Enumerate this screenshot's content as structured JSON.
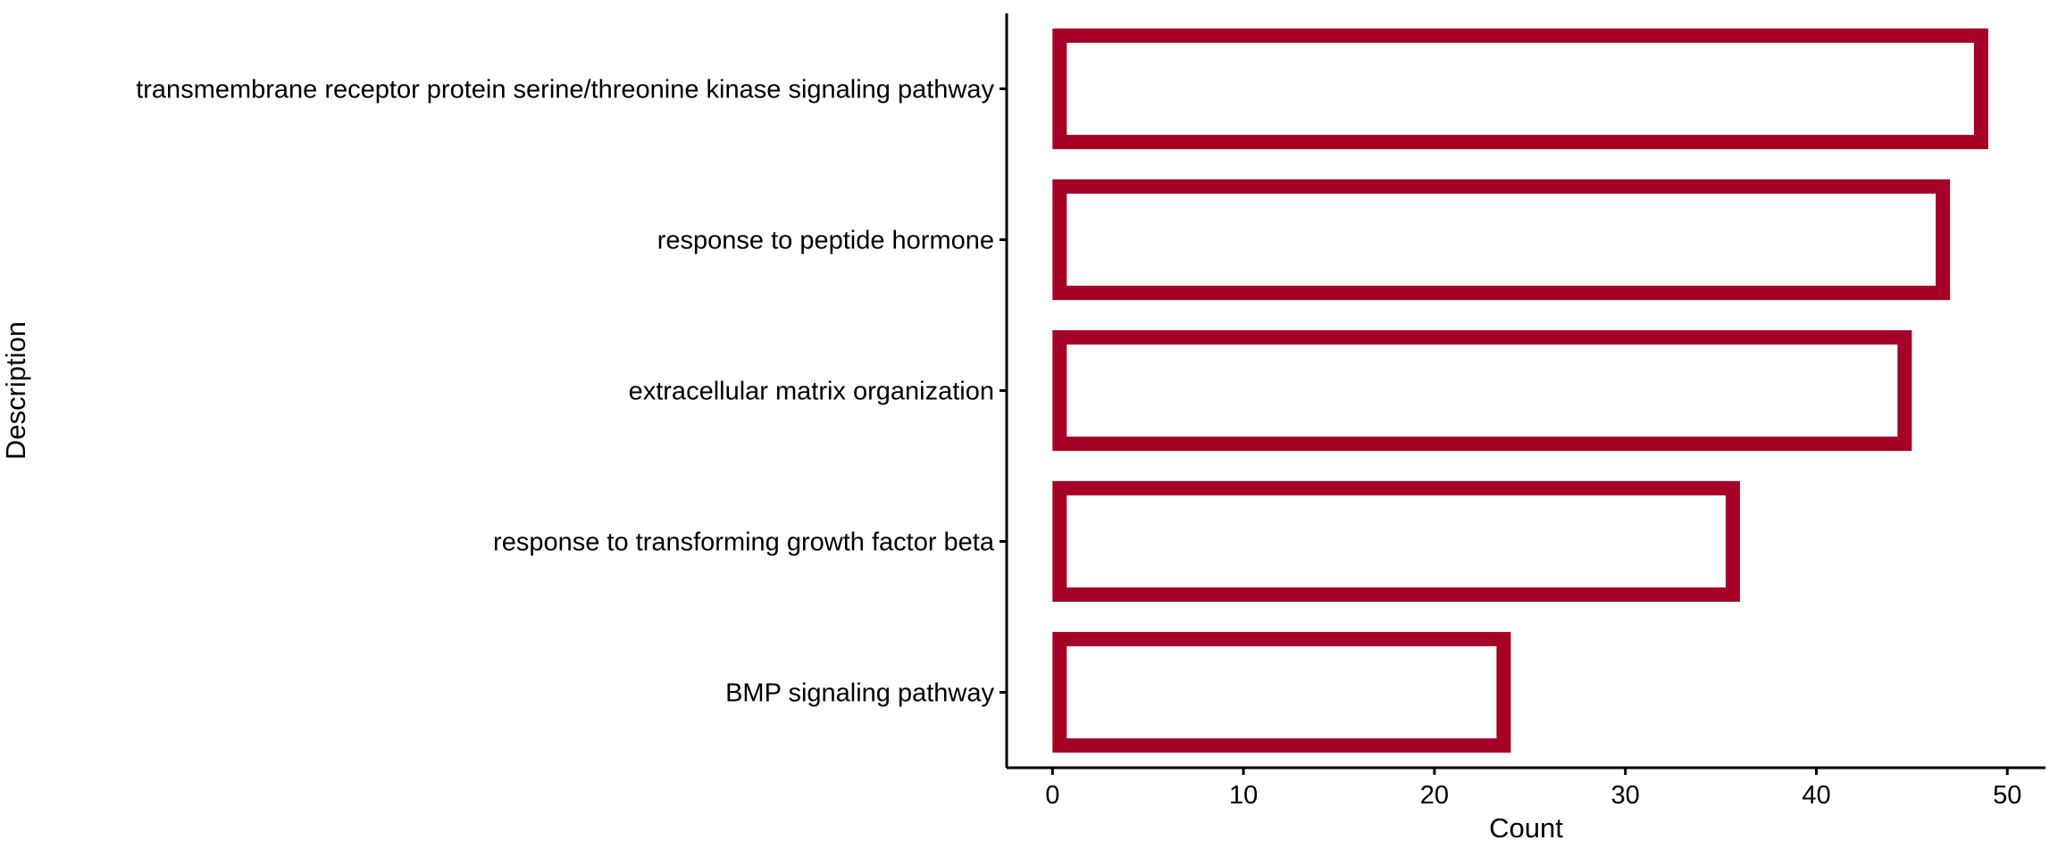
{
  "chart_data": {
    "type": "bar",
    "orientation": "horizontal",
    "categories": [
      "transmembrane receptor protein serine/threonine kinase signaling pathway",
      "response to peptide hormone",
      "extracellular matrix organization",
      "response to transforming growth factor beta",
      "BMP signaling pathway"
    ],
    "values": [
      49,
      47,
      45,
      36,
      24
    ],
    "xlabel": "Count",
    "ylabel": "Description",
    "xlim": [
      -2.4,
      52
    ],
    "x_ticks": [
      0,
      10,
      20,
      30,
      40,
      50
    ],
    "grid": false,
    "bar_style": "outline",
    "bar_color": "#A50026",
    "bar_fill": "#ffffff"
  }
}
